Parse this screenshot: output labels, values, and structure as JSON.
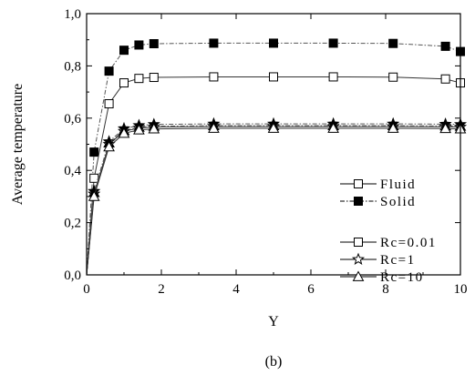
{
  "chart_data": {
    "type": "line",
    "xlabel": "Y",
    "ylabel": "Average temperature",
    "caption": "(b)",
    "xlim": [
      0,
      10
    ],
    "ylim": [
      0,
      1
    ],
    "xticks": [
      0,
      2,
      4,
      6,
      8,
      10
    ],
    "xtick_labels": [
      "0",
      "2",
      "4",
      "6",
      "8",
      "10"
    ],
    "yticks": [
      0,
      0.2,
      0.4,
      0.6,
      0.8,
      1.0
    ],
    "ytick_labels": [
      "0,0",
      "0,2",
      "0,4",
      "0,6",
      "0,8",
      "1,0"
    ],
    "grid": false,
    "legend_placement": "bottom-right",
    "legend_groups": [
      [
        {
          "label": "Fluid",
          "marker": "square-open",
          "dash": "solid"
        },
        {
          "label": "Solid",
          "marker": "square-filled",
          "dash": "dashdot"
        }
      ],
      [
        {
          "label": "Rc=0.01",
          "marker": "square-open",
          "dash": "solid"
        },
        {
          "label": "Rc=1",
          "marker": "star-open",
          "dash": "solid"
        },
        {
          "label": "Rc=10",
          "marker": "triangle-open",
          "dash": "solid"
        }
      ]
    ],
    "series": [
      {
        "key": "solid_rc001",
        "marker": "square-filled",
        "dash": "dashdot",
        "x": [
          0,
          0.2,
          0.6,
          1.0,
          1.4,
          1.8,
          3.4,
          5.0,
          6.6,
          8.2,
          9.6,
          10.0
        ],
        "y": [
          0.0,
          0.47,
          0.78,
          0.86,
          0.88,
          0.885,
          0.887,
          0.887,
          0.887,
          0.886,
          0.875,
          0.855
        ]
      },
      {
        "key": "fluid_rc001",
        "marker": "square-open",
        "dash": "solid",
        "x": [
          0,
          0.2,
          0.6,
          1.0,
          1.4,
          1.8,
          3.4,
          5.0,
          6.6,
          8.2,
          9.6,
          10.0
        ],
        "y": [
          0.0,
          0.37,
          0.655,
          0.735,
          0.752,
          0.756,
          0.758,
          0.758,
          0.758,
          0.757,
          0.75,
          0.735
        ]
      },
      {
        "key": "solid_rc1",
        "marker": "star-filled",
        "dash": "dashdot",
        "x": [
          0,
          0.2,
          0.6,
          1.0,
          1.4,
          1.8,
          3.4,
          5.0,
          6.6,
          8.2,
          9.6,
          10.0
        ],
        "y": [
          0.0,
          0.32,
          0.51,
          0.56,
          0.572,
          0.576,
          0.578,
          0.578,
          0.578,
          0.578,
          0.577,
          0.576
        ]
      },
      {
        "key": "fluid_rc1",
        "marker": "star-open",
        "dash": "solid",
        "x": [
          0,
          0.2,
          0.6,
          1.0,
          1.4,
          1.8,
          3.4,
          5.0,
          6.6,
          8.2,
          9.6,
          10.0
        ],
        "y": [
          0.0,
          0.31,
          0.5,
          0.55,
          0.562,
          0.566,
          0.568,
          0.568,
          0.568,
          0.568,
          0.567,
          0.566
        ]
      },
      {
        "key": "solid_rc10",
        "marker": "triangle-filled",
        "dash": "dashdot",
        "x": [
          0,
          0.2,
          0.6,
          1.0,
          1.4,
          1.8,
          3.4,
          5.0,
          6.6,
          8.2,
          9.6,
          10.0
        ],
        "y": [
          0.0,
          0.315,
          0.505,
          0.552,
          0.565,
          0.569,
          0.571,
          0.571,
          0.571,
          0.571,
          0.57,
          0.569
        ]
      },
      {
        "key": "fluid_rc10",
        "marker": "triangle-open",
        "dash": "solid",
        "x": [
          0,
          0.2,
          0.6,
          1.0,
          1.4,
          1.8,
          3.4,
          5.0,
          6.6,
          8.2,
          9.6,
          10.0
        ],
        "y": [
          0.0,
          0.3,
          0.49,
          0.542,
          0.555,
          0.559,
          0.561,
          0.561,
          0.561,
          0.561,
          0.56,
          0.559
        ]
      }
    ]
  }
}
